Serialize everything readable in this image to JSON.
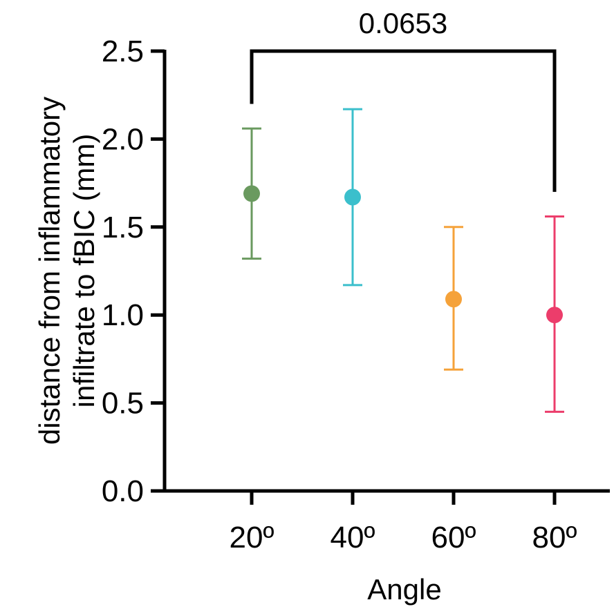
{
  "chart_data": {
    "type": "scatter",
    "xlabel": "Angle",
    "ylabel_lines": [
      "distance from inflammatory",
      "infiltrate to fBIC (mm)"
    ],
    "categories": [
      "20º",
      "40º",
      "60º",
      "80º"
    ],
    "ylim": [
      0,
      2.5
    ],
    "yticks": [
      0.0,
      0.5,
      1.0,
      1.5,
      2.0,
      2.5
    ],
    "ytick_labels": [
      "0.0",
      "0.5",
      "1.0",
      "1.5",
      "2.0",
      "2.5"
    ],
    "points": [
      {
        "category": "20º",
        "mean": 1.69,
        "lower": 1.32,
        "upper": 2.06,
        "color": "#6a9a5f"
      },
      {
        "category": "40º",
        "mean": 1.67,
        "lower": 1.17,
        "upper": 2.17,
        "color": "#3bbfcc"
      },
      {
        "category": "60º",
        "mean": 1.09,
        "lower": 0.69,
        "upper": 1.5,
        "color": "#f5a23a"
      },
      {
        "category": "80º",
        "mean": 1.0,
        "lower": 0.45,
        "upper": 1.56,
        "color": "#ec3d6b"
      }
    ],
    "comparison": {
      "from": "20º",
      "to": "80º",
      "label": "0.0653",
      "left_tip": 2.2,
      "right_tip": 1.7
    },
    "grid": false,
    "legend": "none"
  }
}
